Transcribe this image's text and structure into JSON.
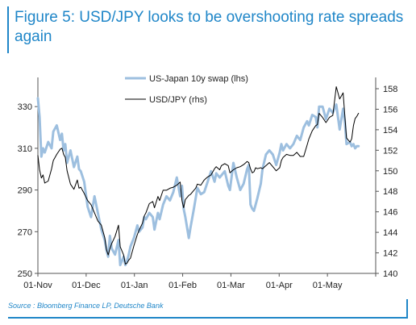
{
  "title": "Figure 5: USD/JPY looks to be overshooting rate spreads again",
  "source": "Source : Bloomberg Finance LP, Deutsche Bank",
  "colors": {
    "title": "#1f86c8",
    "swap": "#9dbfdf",
    "usdjpy": "#000000",
    "frame": "#1f86c8"
  },
  "chart_data": {
    "type": "line",
    "x_labels": [
      "01-Nov",
      "01-Dec",
      "01-Jan",
      "01-Feb",
      "01-Mar",
      "01-Apr",
      "01-May"
    ],
    "y_left": {
      "ticks": [
        250,
        270,
        290,
        310,
        330
      ],
      "lim": [
        250,
        344
      ]
    },
    "y_right": {
      "ticks": [
        140,
        142,
        144,
        146,
        148,
        150,
        152,
        154,
        156,
        158
      ],
      "lim": [
        140,
        159.1
      ]
    },
    "x_range": [
      0,
      197
    ],
    "legend_position": "top-center",
    "grid": false,
    "series": [
      {
        "name": "US-Japan 10y swap (lhs)",
        "axis": "left",
        "x": [
          0,
          1,
          2,
          3,
          4,
          6,
          8,
          9,
          11,
          13,
          14,
          15,
          16,
          17,
          19,
          21,
          23,
          24,
          25,
          27,
          29,
          31,
          33,
          35,
          37,
          39,
          40,
          41,
          42,
          43,
          45,
          47,
          48,
          50,
          51,
          52,
          53,
          54,
          56,
          58,
          59,
          61,
          62,
          63,
          65,
          67,
          68,
          70,
          71,
          73,
          75,
          77,
          79,
          81,
          83,
          84,
          85,
          86,
          88,
          89,
          91,
          92,
          93,
          95,
          97,
          99,
          101,
          103,
          104,
          106,
          107,
          109,
          111,
          112,
          114,
          116,
          118,
          120,
          122,
          123,
          124,
          125,
          126,
          127,
          128,
          130,
          131,
          133,
          135,
          137,
          139,
          141,
          142,
          143,
          145,
          147,
          149,
          151,
          153,
          155,
          157,
          158,
          160,
          162,
          163,
          164,
          166,
          168,
          170,
          172,
          174,
          176,
          178,
          179,
          180,
          182,
          183,
          184,
          185,
          186,
          187
        ],
        "y": [
          334,
          325,
          306,
          310,
          308,
          313,
          310,
          318,
          321,
          314,
          317,
          309,
          312,
          303,
          309,
          301,
          306,
          300,
          299,
          294,
          282,
          277,
          287,
          279,
          271,
          266,
          261,
          258,
          268,
          262,
          259,
          266,
          254,
          258,
          254,
          256,
          259,
          263,
          267,
          273,
          270,
          272,
          277,
          276,
          279,
          277,
          271,
          279,
          276,
          283,
          287,
          285,
          289,
          296,
          287,
          292,
          281,
          277,
          267,
          272,
          281,
          286,
          291,
          288,
          289,
          294,
          299,
          294,
          298,
          296,
          297,
          299,
          292,
          290,
          303,
          296,
          290,
          293,
          300,
          302,
          283,
          281,
          280,
          283,
          286,
          293,
          300,
          307,
          309,
          307,
          302,
          308,
          312,
          309,
          312,
          310,
          312,
          316,
          314,
          320,
          323,
          321,
          326,
          325,
          320,
          330,
          330,
          324,
          329,
          327,
          331,
          319,
          329,
          323,
          312,
          313,
          311,
          312,
          310,
          311,
          311
        ]
      },
      {
        "name": "USD/JPY (rhs)",
        "axis": "right",
        "x": [
          0,
          1,
          2,
          3,
          4,
          6,
          8,
          9,
          11,
          13,
          14,
          15,
          16,
          17,
          19,
          21,
          23,
          24,
          25,
          27,
          29,
          31,
          33,
          35,
          37,
          39,
          40,
          41,
          42,
          43,
          45,
          47,
          48,
          50,
          51,
          52,
          53,
          54,
          56,
          58,
          59,
          61,
          62,
          63,
          65,
          67,
          68,
          70,
          71,
          73,
          75,
          77,
          79,
          81,
          83,
          84,
          85,
          86,
          88,
          89,
          91,
          92,
          93,
          95,
          97,
          99,
          101,
          103,
          104,
          106,
          107,
          109,
          111,
          112,
          114,
          116,
          118,
          120,
          122,
          123,
          124,
          125,
          126,
          127,
          128,
          130,
          131,
          133,
          135,
          137,
          139,
          141,
          142,
          143,
          145,
          147,
          149,
          151,
          153,
          155,
          157,
          158,
          160,
          162,
          163,
          164,
          166,
          168,
          170,
          172,
          174,
          176,
          178,
          179,
          180,
          182,
          183,
          184,
          185,
          186,
          187
        ],
        "y": [
          151.5,
          150.1,
          149.3,
          149.6,
          148.8,
          149.0,
          150.2,
          151.0,
          151.6,
          152.1,
          152.2,
          151.6,
          151.3,
          150.0,
          148.7,
          148.2,
          149.1,
          148.3,
          148.4,
          147.8,
          147.1,
          146.7,
          145.9,
          145.1,
          144.7,
          143.5,
          142.3,
          141.8,
          142.4,
          142.9,
          143.6,
          144.7,
          142.6,
          141.8,
          140.9,
          141.0,
          141.3,
          141.5,
          142.7,
          143.8,
          144.2,
          144.9,
          145.6,
          145.9,
          146.8,
          147.0,
          146.4,
          147.5,
          147.1,
          148.1,
          148.1,
          148.3,
          148.4,
          148.6,
          148.9,
          147.1,
          146.4,
          147.2,
          147.6,
          147.7,
          148.1,
          148.3,
          148.7,
          148.6,
          149.1,
          149.4,
          149.6,
          150.2,
          150.4,
          150.1,
          150.5,
          150.7,
          150.5,
          149.8,
          150.1,
          150.3,
          150.4,
          150.6,
          150.9,
          150.8,
          150.2,
          149.8,
          149.9,
          150.3,
          150.2,
          150.3,
          150.2,
          150.5,
          150.8,
          150.4,
          150.0,
          150.3,
          151.0,
          151.3,
          151.6,
          151.5,
          151.5,
          151.8,
          151.4,
          151.4,
          152.5,
          153.1,
          153.9,
          154.4,
          154.5,
          155.6,
          155.2,
          154.7,
          155.2,
          155.4,
          158.2,
          157.0,
          157.6,
          155.4,
          153.2,
          152.8,
          153.1,
          154.4,
          155.1,
          155.3,
          155.6
        ]
      }
    ]
  }
}
